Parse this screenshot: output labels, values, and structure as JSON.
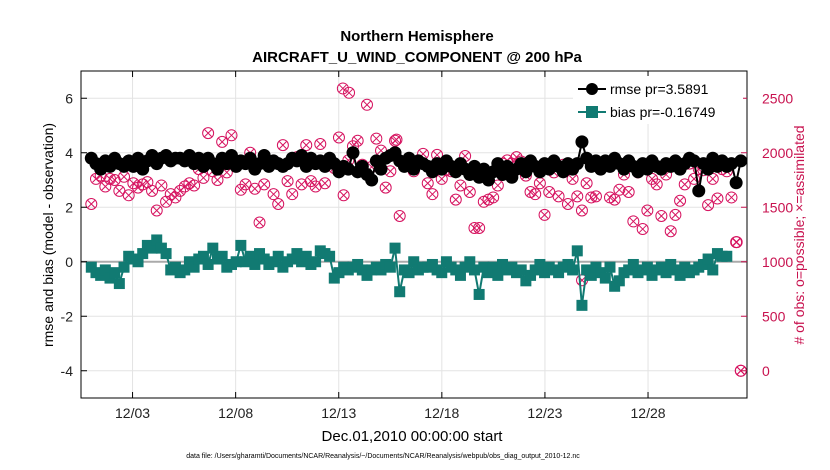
{
  "chart_data": {
    "type": "line",
    "title": "Northern Hemisphere",
    "subtitle": "AIRCRAFT_U_WIND_COMPONENT @ 200 hPa",
    "ylabel_left": "rmse and bias (model - observation)",
    "ylabel_right": "# of obs: o=possible; ×=assimilated",
    "xlabel": "Dec.01,2010 00:00:00 start",
    "footnote": "data file: /Users/gharamti/Documents/NCAR/Reanalysis/~/Documents/NCAR/Reanalysis/webpub/obs_diag_output_2010-12.nc",
    "xlim": [
      0.5,
      32.8
    ],
    "ylim_left": [
      -5,
      7
    ],
    "ylim_right": [
      -250,
      2750
    ],
    "x_ticks": [
      3,
      8,
      13,
      18,
      23,
      28
    ],
    "x_tick_labels": [
      "12/03",
      "12/08",
      "12/13",
      "12/18",
      "12/23",
      "12/28"
    ],
    "y_ticks_left": [
      -4,
      -2,
      0,
      2,
      4,
      6
    ],
    "y_tick_labels_left": [
      "-4",
      "-2",
      "0",
      "2",
      "4",
      "6"
    ],
    "y_ticks_right": [
      0,
      500,
      1000,
      1500,
      2000,
      2500
    ],
    "y_tick_labels_right": [
      "0",
      "500",
      "1000",
      "1500",
      "2000",
      "2500"
    ],
    "grid": true,
    "legend_position": "top-right",
    "colors": {
      "rmse": "#000000",
      "bias": "#117a72",
      "obs": "#d6125f",
      "zero_line": "#aaaaaa"
    },
    "series": [
      {
        "name": "rmse",
        "legend": "rmse pr=3.5891",
        "values": [
          3.8,
          3.6,
          3.4,
          3.7,
          3.5,
          3.8,
          3.6,
          3.5,
          3.7,
          3.5,
          3.8,
          3.4,
          3.7,
          3.9,
          3.6,
          3.8,
          3.9,
          3.7,
          3.8,
          3.8,
          3.7,
          3.9,
          3.6,
          3.8,
          3.5,
          3.8,
          3.6,
          3.4,
          3.8,
          3.6,
          3.9,
          3.5,
          3.7,
          3.6,
          3.8,
          3.4,
          3.6,
          3.9,
          3.5,
          3.7,
          3.6,
          3.5,
          3.6,
          3.8,
          3.7,
          3.9,
          3.5,
          3.8,
          3.6,
          3.7,
          3.5,
          3.8,
          3.6,
          3.3,
          3.5,
          3.4,
          4.0,
          3.3,
          3.5,
          3.2,
          3.0,
          3.7,
          3.4,
          3.8,
          3.9,
          4.0,
          3.7,
          3.5,
          3.8,
          3.4,
          3.7,
          3.6,
          3.5,
          3.3,
          3.6,
          3.4,
          3.7,
          3.5,
          3.3,
          3.6,
          3.4,
          3.2,
          3.5,
          3.1,
          3.4,
          3.0,
          3.3,
          3.6,
          3.2,
          3.5,
          3.1,
          3.4,
          3.6,
          3.3,
          3.7,
          3.5,
          3.3,
          3.6,
          3.4,
          3.7,
          3.5,
          3.3,
          3.6,
          3.4,
          3.6,
          4.4,
          3.8,
          3.5,
          3.7,
          3.4,
          3.7,
          3.5,
          3.8,
          3.6,
          3.4,
          3.7,
          3.5,
          3.3,
          3.6,
          3.4,
          3.7,
          3.5,
          3.4,
          3.6,
          3.5,
          3.7,
          3.4,
          3.6,
          3.8,
          3.7,
          2.6,
          3.6,
          3.4,
          3.8,
          3.5,
          3.7,
          3.5,
          3.6,
          2.9,
          3.7
        ]
      },
      {
        "name": "bias",
        "legend": "bias pr=-0.16749",
        "values": [
          -0.2,
          -0.4,
          -0.5,
          -0.3,
          -0.6,
          -0.4,
          -0.8,
          -0.2,
          0.2,
          0.1,
          0.0,
          0.3,
          0.6,
          0.5,
          0.8,
          0.5,
          0.3,
          -0.3,
          -0.2,
          -0.4,
          -0.3,
          0.0,
          -0.2,
          0.1,
          0.2,
          -0.1,
          0.5,
          0.1,
          0.2,
          -0.2,
          -0.1,
          0.0,
          0.6,
          0.0,
          0.2,
          -0.1,
          0.3,
          0.1,
          -0.1,
          0.0,
          0.2,
          -0.2,
          0.0,
          0.1,
          0.3,
          0.0,
          0.2,
          -0.1,
          0.0,
          0.4,
          0.3,
          0.2,
          -0.6,
          -0.4,
          -0.2,
          -0.3,
          -0.2,
          -0.1,
          -0.3,
          -0.5,
          -0.3,
          -0.2,
          -0.3,
          -0.1,
          -0.2,
          0.5,
          -1.1,
          -0.3,
          -0.4,
          0.0,
          -0.3,
          -0.2,
          -0.2,
          -0.1,
          -0.3,
          -0.4,
          0.0,
          -0.2,
          -0.3,
          -0.5,
          -0.2,
          0.0,
          -0.3,
          -1.2,
          -0.2,
          -0.4,
          -0.2,
          -0.5,
          -0.1,
          -0.3,
          -0.2,
          -0.4,
          -0.3,
          -0.7,
          -0.5,
          -0.3,
          -0.1,
          -0.4,
          -0.2,
          -0.3,
          -0.4,
          -0.2,
          -0.1,
          -0.3,
          0.4,
          -1.6,
          -0.3,
          -0.5,
          -0.2,
          -0.4,
          -0.6,
          -0.2,
          -0.9,
          -0.7,
          -0.4,
          -0.3,
          -0.1,
          -0.4,
          -0.3,
          -0.2,
          -0.5,
          -0.3,
          -0.2,
          -0.4,
          -0.1,
          -0.3,
          -0.5,
          -0.2,
          -0.4,
          -0.3,
          -0.2,
          -0.1,
          0.1,
          -0.3,
          0.3,
          0.2,
          0.2
        ]
      },
      {
        "name": "obs_possible",
        "values": [
          1530,
          1760,
          1790,
          1690,
          1760,
          1750,
          1650,
          1780,
          1610,
          1720,
          1680,
          1710,
          1730,
          1650,
          1470,
          1700,
          1550,
          1620,
          1590,
          1650,
          1690,
          1720,
          1700,
          1850,
          1770,
          2180,
          1830,
          1750,
          2100,
          1820,
          2160,
          1890,
          1660,
          1710,
          2000,
          1670,
          1360,
          1710,
          1920,
          1620,
          1530,
          2070,
          1740,
          1620,
          1960,
          1710,
          2070,
          1740,
          1690,
          2080,
          1720,
          1910,
          1860,
          2140,
          1610,
          1930,
          2060,
          2110,
          1890,
          2440,
          1870,
          2130,
          2020,
          1680,
          1830,
          2110,
          1420,
          1890,
          1900,
          1830,
          1930,
          1990,
          1720,
          1620,
          1980,
          1760,
          1840,
          1830,
          1570,
          1700,
          1970,
          1640,
          1310,
          1310,
          1550,
          1570,
          1590,
          1700,
          1900,
          1930,
          1900,
          1960,
          1920,
          1790,
          1640,
          1620,
          1720,
          1430,
          1640,
          1820,
          1600,
          1890,
          1530,
          1760,
          1600,
          1470,
          1720,
          1590,
          1600,
          1860,
          1900,
          1590,
          1570,
          1660,
          1800,
          1640,
          1370,
          1820,
          1300,
          1470,
          1760,
          1710,
          1420,
          1800,
          1280,
          1430,
          1560,
          1710,
          1900,
          1760,
          1850,
          1840,
          1520,
          1760,
          1580,
          1850,
          1830,
          1590,
          1180,
          0
        ]
      }
    ],
    "obs_highlights": [
      {
        "x": 13.2,
        "value": 2590
      },
      {
        "x": 13.5,
        "value": 2550
      },
      {
        "x": 15.8,
        "value": 2120
      },
      {
        "x": 24.8,
        "value": 830
      },
      {
        "x": 32.3,
        "value": 1180
      },
      {
        "x": 32.5,
        "value": 0
      }
    ]
  }
}
